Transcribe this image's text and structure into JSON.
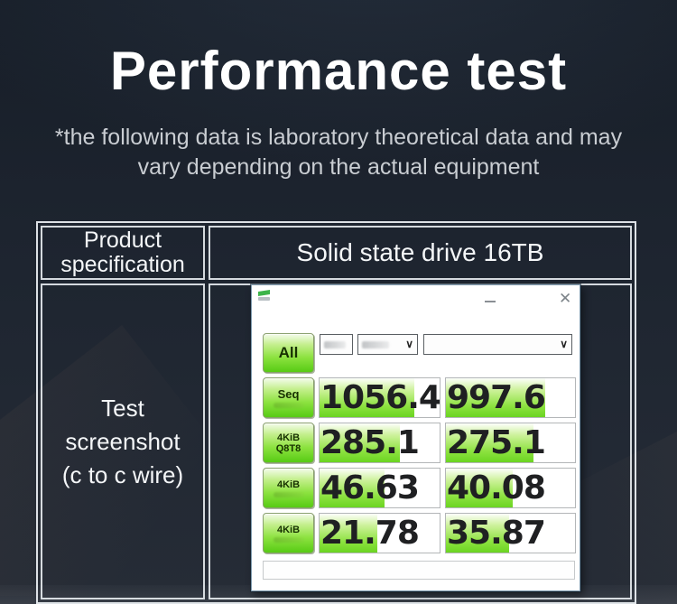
{
  "header": {
    "title": "Performance test",
    "subtitle_line1": "*the following data is laboratory theoretical data and may",
    "subtitle_line2": "vary depending on the actual equipment"
  },
  "spec_table": {
    "row1_col1_line1": "Product",
    "row1_col1_line2": "specification",
    "row1_col2": "Solid state drive 16TB",
    "row2_col1_line1": "Test",
    "row2_col1_line2": "screenshot",
    "row2_col1_line3": "(c to c wire)"
  },
  "benchmark": {
    "all_button": "All",
    "rows": [
      {
        "label": "Seq",
        "sublabel": "",
        "col1": "1056.4",
        "col2": "997.6",
        "fill1": 79,
        "fill2": 77
      },
      {
        "label": "4KiB",
        "sublabel": "Q8T8",
        "col1": "285.1",
        "col2": "275.1",
        "fill1": 67,
        "fill2": 68
      },
      {
        "label": "4KiB",
        "sublabel": "",
        "col1": "46.63",
        "col2": "40.08",
        "fill1": 54,
        "fill2": 52
      },
      {
        "label": "4KiB",
        "sublabel": "",
        "col1": "21.78",
        "col2": "35.87",
        "fill1": 48,
        "fill2": 49
      }
    ]
  },
  "icons": {
    "close": "✕",
    "chevron": "∨",
    "app_logo": "benchmark-app-logo"
  },
  "colors": {
    "accent_green": "#57cb14",
    "background_dark": "#1d2430",
    "table_border": "#eef2f6"
  }
}
